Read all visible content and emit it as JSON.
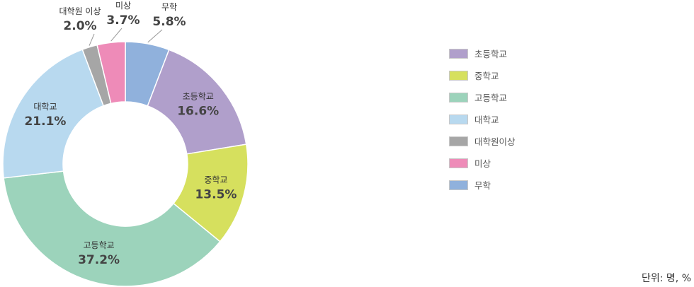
{
  "chart_data": {
    "type": "pie",
    "donut": true,
    "slices": [
      {
        "label": "초등학교",
        "value": 16.6,
        "value_text": "16.6%",
        "color": "#b09fcb"
      },
      {
        "label": "중학교",
        "value": 13.5,
        "value_text": "13.5%",
        "color": "#d6e05e"
      },
      {
        "label": "고등학교",
        "value": 37.2,
        "value_text": "37.2%",
        "color": "#9cd3bb"
      },
      {
        "label": "대학교",
        "value": 21.1,
        "value_text": "21.1%",
        "color": "#b8d9ef"
      },
      {
        "label": "대학원 이상",
        "value": 2.0,
        "value_text": "2.0%",
        "color": "#a6a6a6"
      },
      {
        "label": "미상",
        "value": 3.7,
        "value_text": "3.7%",
        "color": "#ee8bb8"
      },
      {
        "label": "무학",
        "value": 5.8,
        "value_text": "5.8%",
        "color": "#90b1dc"
      }
    ],
    "legend": {
      "placement": "right",
      "items": [
        "초등학교",
        "중학교",
        "고등학교",
        "대학교",
        "대학원이상",
        "미상",
        "무학"
      ]
    },
    "unit_note": "단위: 명, %"
  }
}
